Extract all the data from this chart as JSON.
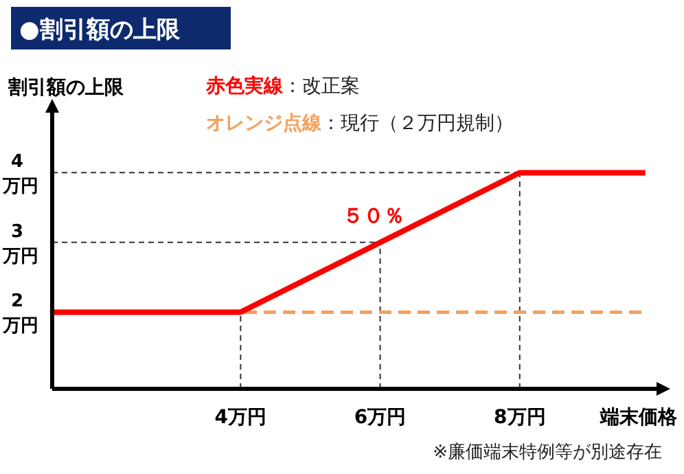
{
  "chart_data": {
    "type": "line",
    "title": "●割引額の上限",
    "ylabel": "割引額の上限",
    "xlabel": "端末価格",
    "xlim": [
      1.3,
      10
    ],
    "ylim": [
      0.9,
      4.9
    ],
    "xticks": [
      {
        "value": 4,
        "label": "4万円"
      },
      {
        "value": 6,
        "label": "6万円"
      },
      {
        "value": 8,
        "label": "8万円"
      }
    ],
    "yticks": [
      {
        "value": 2,
        "label": "2万円"
      },
      {
        "value": 3,
        "label": "3万円"
      },
      {
        "value": 4,
        "label": "4万円"
      }
    ],
    "grid": true,
    "legend": "top",
    "series": [
      {
        "name": "赤色実線：改正案",
        "color": "#ff0000",
        "line_style": "solid",
        "x": [
          1.3,
          4,
          8,
          9.8
        ],
        "values": [
          2,
          2,
          4,
          4
        ]
      },
      {
        "name": "オレンジ点線：現行（２万円規制）",
        "color": "#f4a15d",
        "line_style": "dashed",
        "x": [
          1.3,
          9.8
        ],
        "values": [
          2,
          2
        ]
      }
    ],
    "annotations": [
      "５０％",
      "※廉価端末特例等が別途存在"
    ]
  }
}
